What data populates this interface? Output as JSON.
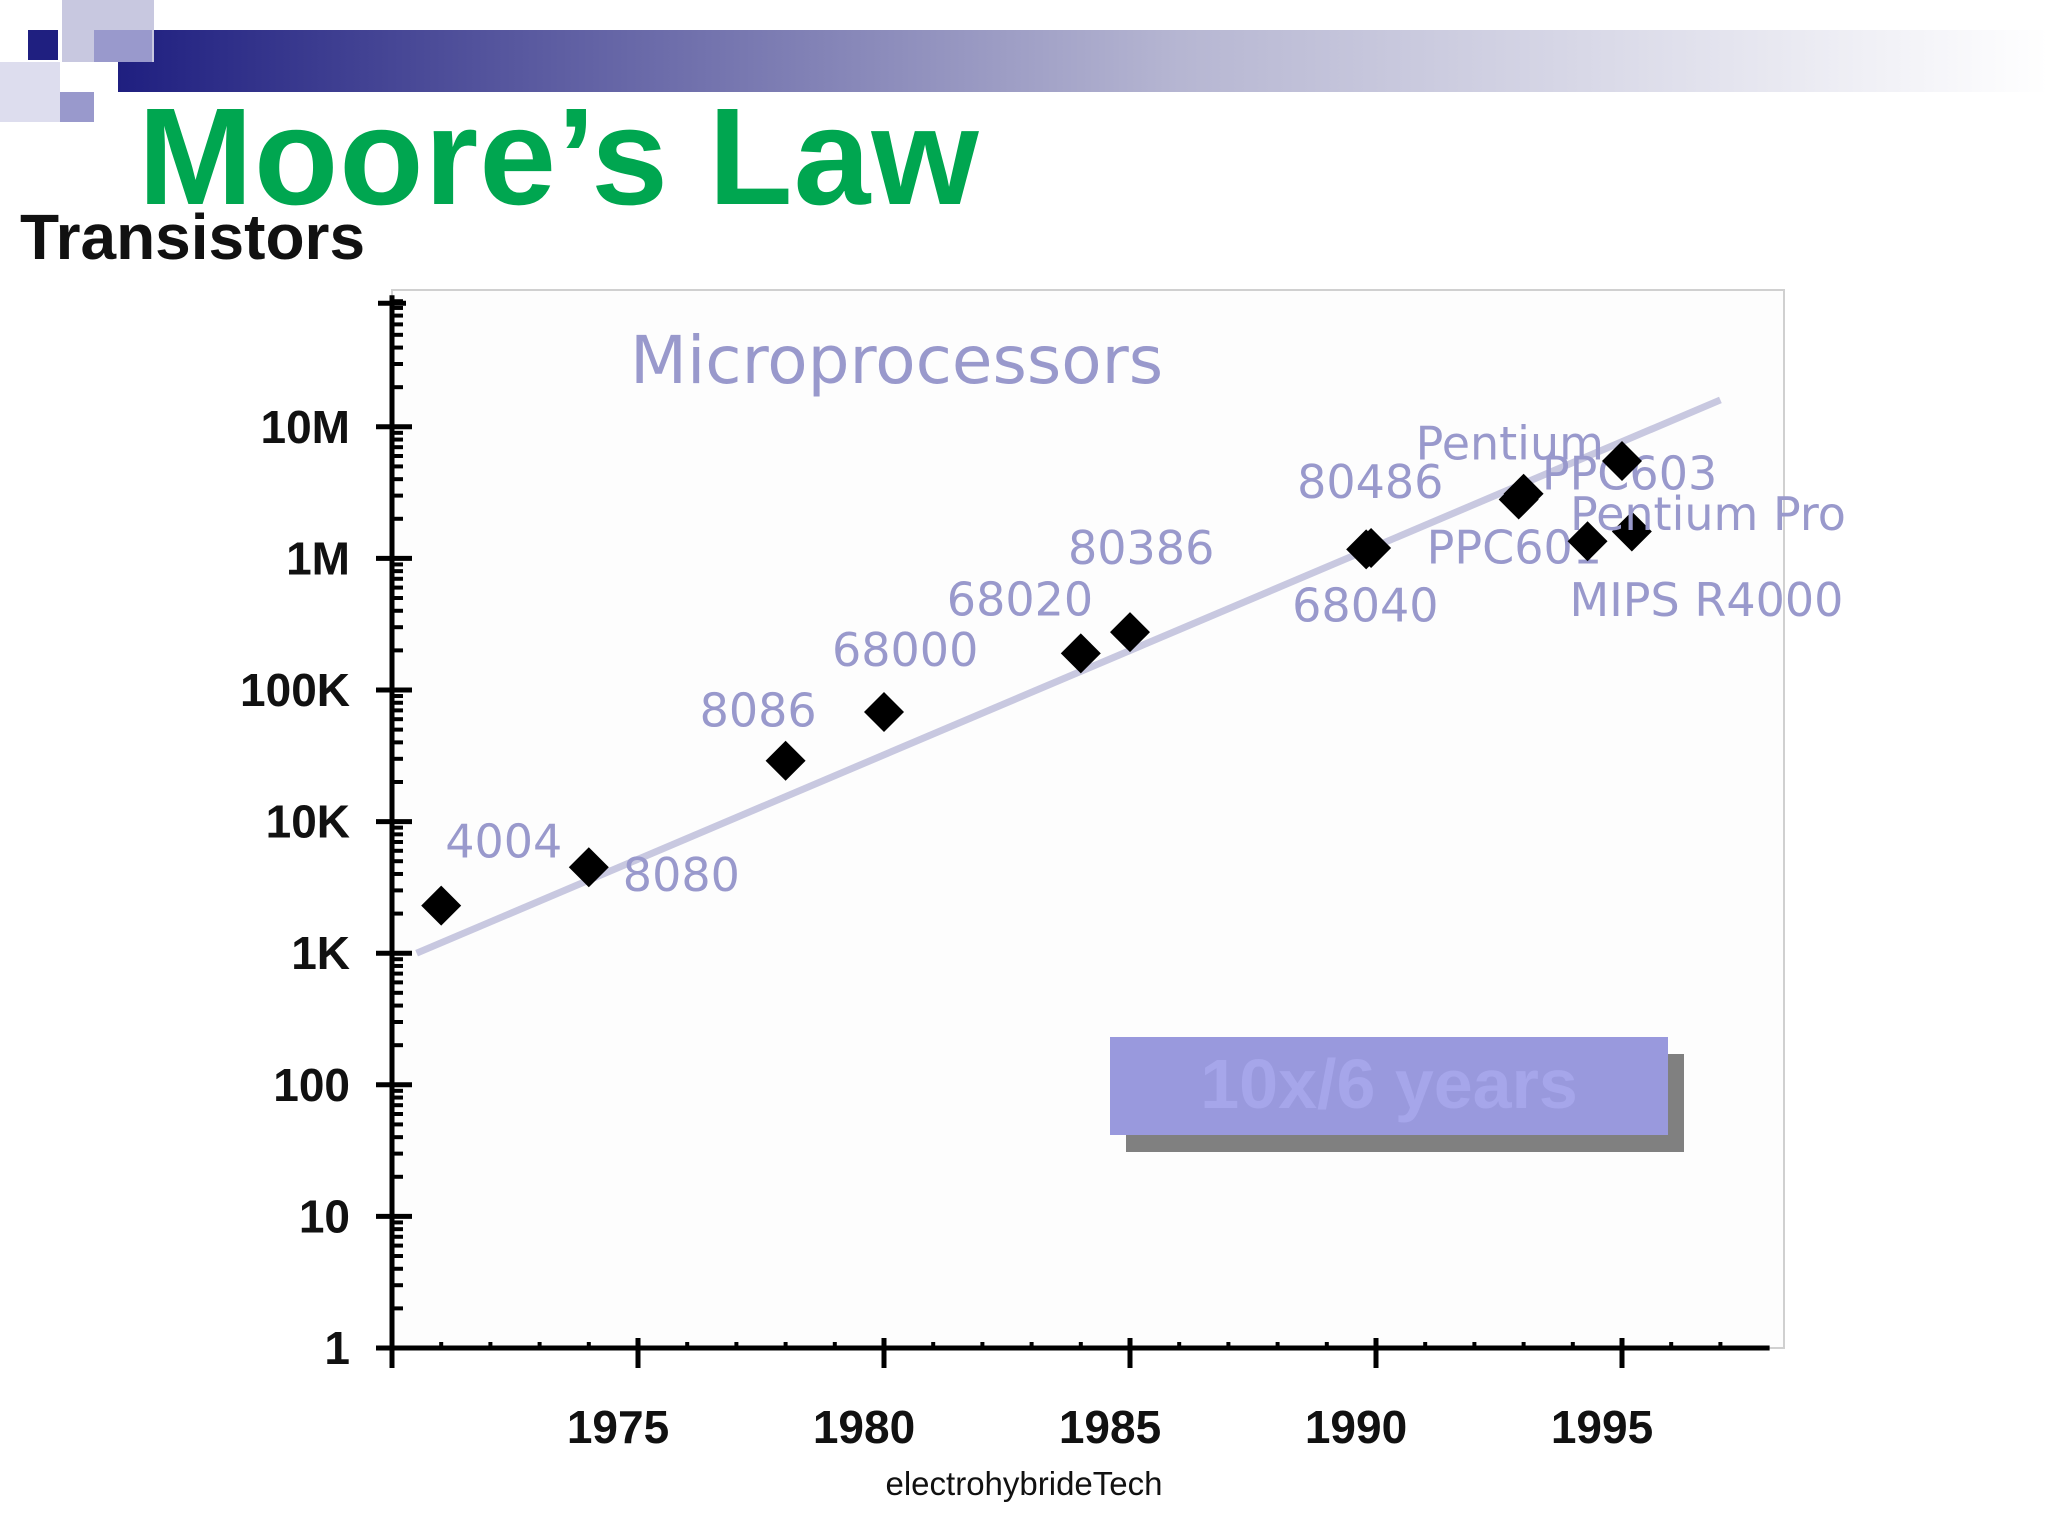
{
  "slide": {
    "title": "Moore’s Law",
    "credit": "electrohybrideTech"
  },
  "colors": {
    "title": "#00a650",
    "banner_dark": "#1f1f80",
    "point_labels": "#9999cc",
    "trend_line": "#c8c8e0",
    "callout_box": "#9999dd",
    "callout_shadow": "#808080"
  },
  "chart_data": {
    "type": "scatter",
    "title": "Microprocessors",
    "ylabel": "Transistors",
    "xlabel": "",
    "y_scale": "log",
    "y_ticks": [
      {
        "value": 1,
        "label": "1"
      },
      {
        "value": 10,
        "label": "10"
      },
      {
        "value": 100,
        "label": "100"
      },
      {
        "value": 1000,
        "label": "1K"
      },
      {
        "value": 10000,
        "label": "10K"
      },
      {
        "value": 100000,
        "label": "100K"
      },
      {
        "value": 1000000,
        "label": "1M"
      },
      {
        "value": 10000000,
        "label": "10M"
      }
    ],
    "x_ticks": [
      {
        "value": 1975,
        "label": "1975"
      },
      {
        "value": 1980,
        "label": "1980"
      },
      {
        "value": 1985,
        "label": "1985"
      },
      {
        "value": 1990,
        "label": "1990"
      },
      {
        "value": 1995,
        "label": "1995"
      }
    ],
    "xlim": [
      1970,
      1998
    ],
    "ylim": [
      1,
      100000000
    ],
    "points": [
      {
        "label": "4004",
        "x": 1971,
        "y": 2300
      },
      {
        "label": "8080",
        "x": 1974,
        "y": 4500
      },
      {
        "label": "8086",
        "x": 1978,
        "y": 29000
      },
      {
        "label": "68000",
        "x": 1980,
        "y": 68000
      },
      {
        "label": "68020",
        "x": 1984,
        "y": 190000
      },
      {
        "label": "80386",
        "x": 1985,
        "y": 275000
      },
      {
        "label": "80486",
        "x": 1989.9,
        "y": 1200000
      },
      {
        "label": "68040",
        "x": 1989.8,
        "y": 1170000
      },
      {
        "label": "Pentium",
        "x": 1993,
        "y": 3100000
      },
      {
        "label": "PPC601",
        "x": 1992.9,
        "y": 2800000
      },
      {
        "label": "PPC603",
        "x": 1995.2,
        "y": 1600000
      },
      {
        "label": "Pentium Pro",
        "x": 1995,
        "y": 5500000
      },
      {
        "label": "MIPS R4000",
        "x": 1994.3,
        "y": 1350000
      }
    ],
    "trend_line": {
      "x": [
        1970.5,
        1997
      ],
      "y": [
        1000,
        16000000
      ]
    },
    "annotation": "10x/6 years"
  }
}
